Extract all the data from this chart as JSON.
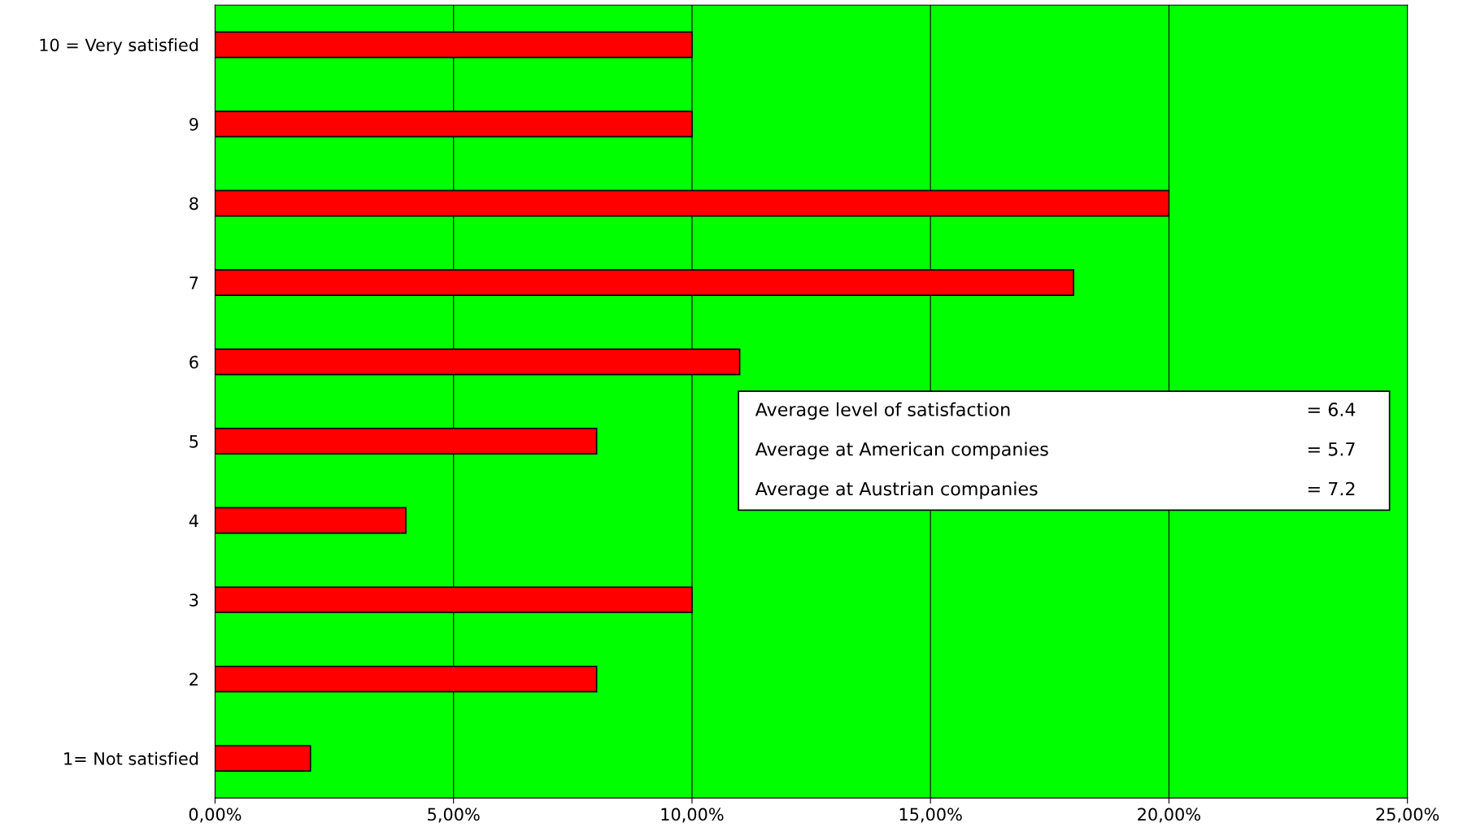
{
  "chart_data": {
    "type": "bar",
    "orientation": "horizontal",
    "categories": [
      "10 = Very satisfied",
      "9",
      "8",
      "7",
      "6",
      "5",
      "4",
      "3",
      "2",
      "1= Not satisfied"
    ],
    "values": [
      10,
      10,
      20,
      18,
      11,
      8,
      4,
      10,
      8,
      2
    ],
    "color": "#ff0000",
    "xlim": [
      0,
      25
    ],
    "xticks": [
      {
        "value": 0,
        "label": "0,00%"
      },
      {
        "value": 5,
        "label": "5,00%"
      },
      {
        "value": 10,
        "label": "10,00%"
      },
      {
        "value": 15,
        "label": "15,00%"
      },
      {
        "value": 20,
        "label": "20,00%"
      },
      {
        "value": 25,
        "label": "25,00%"
      }
    ],
    "grid": "x",
    "legend": false,
    "annotations": [
      "Average level of satisfaction",
      "= 6.4",
      "Average at American companies",
      "= 5.7",
      "Average at Austrian companies",
      "= 7.2"
    ]
  }
}
